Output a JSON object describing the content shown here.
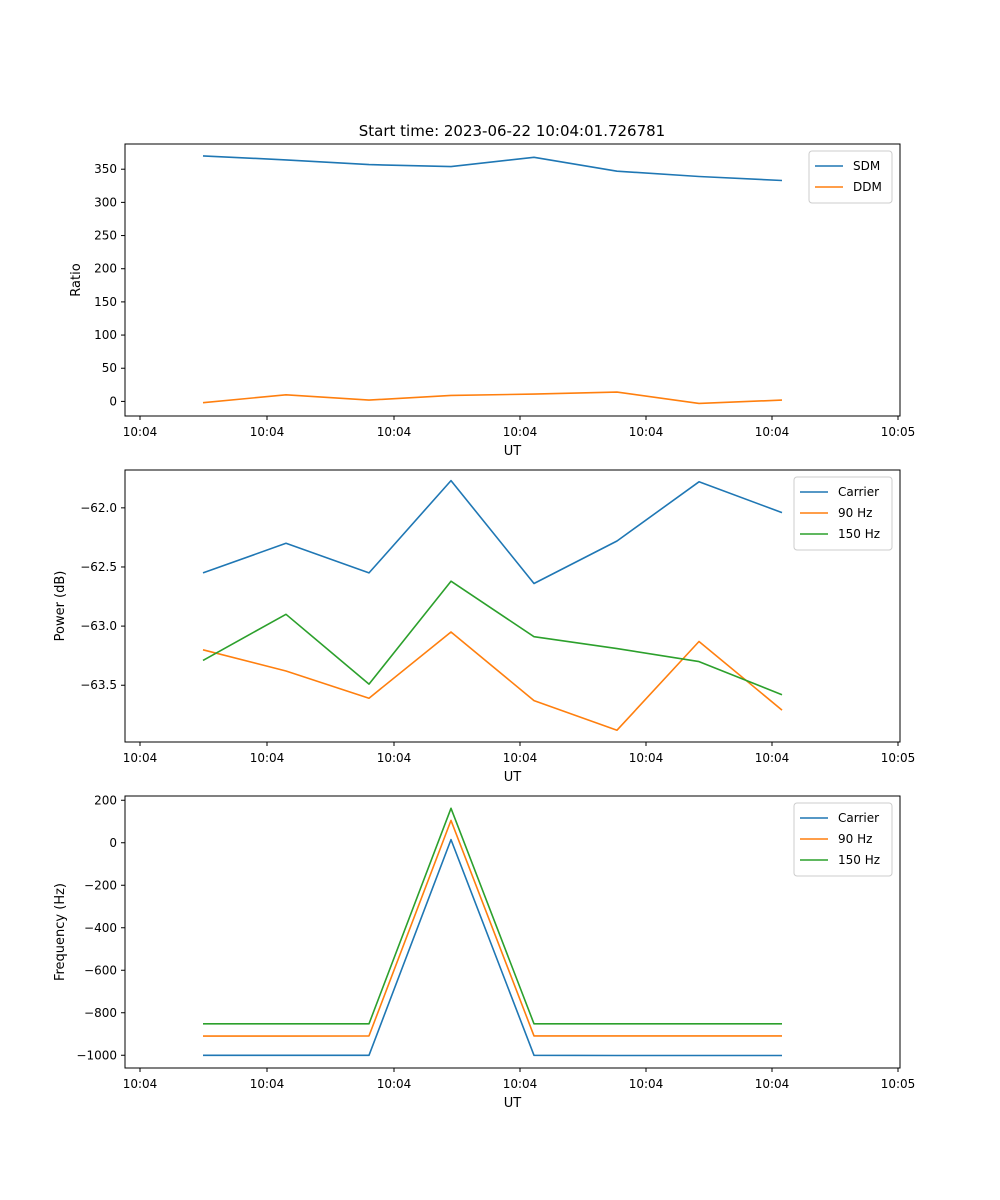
{
  "figure": {
    "title": "Start time: 2023-06-22 10:04:01.726781"
  },
  "chart_data": [
    {
      "type": "line",
      "title": "Start time: 2023-06-22 10:04:01.726781",
      "xlabel": "UT",
      "ylabel": "Ratio",
      "x_tick_labels": [
        "10:04",
        "10:04",
        "10:04",
        "10:04",
        "10:04",
        "10:04",
        "10:04"
      ],
      "x_tick_labels_end": "10:05",
      "ylim": [
        -22,
        388
      ],
      "y_ticks": [
        0,
        50,
        100,
        150,
        200,
        250,
        300,
        350
      ],
      "legend": "top-right",
      "series": [
        {
          "name": "SDM",
          "color": "#1f77b4",
          "values": [
            370,
            364,
            357,
            354,
            368,
            347,
            339,
            333
          ]
        },
        {
          "name": "DDM",
          "color": "#ff7f0e",
          "values": [
            -2,
            10,
            2,
            9,
            11,
            14,
            -3,
            2
          ]
        }
      ]
    },
    {
      "type": "line",
      "xlabel": "UT",
      "ylabel": "Power (dB)",
      "x_tick_labels": [
        "10:04",
        "10:04",
        "10:04",
        "10:04",
        "10:04",
        "10:04",
        "10:04"
      ],
      "x_tick_labels_end": "10:05",
      "ylim": [
        -63.98,
        -61.68
      ],
      "y_ticks": [
        -63.5,
        -63.0,
        -62.5,
        -62.0
      ],
      "y_tick_labels": [
        "−63.5",
        "−63.0",
        "−62.5",
        "−62.0"
      ],
      "legend": "top-right",
      "series": [
        {
          "name": "Carrier",
          "color": "#1f77b4",
          "values": [
            -62.55,
            -62.3,
            -62.55,
            -61.77,
            -62.64,
            -62.28,
            -61.78,
            -62.04
          ]
        },
        {
          "name": "90 Hz",
          "color": "#ff7f0e",
          "values": [
            -63.2,
            -63.38,
            -63.61,
            -63.05,
            -63.63,
            -63.88,
            -63.13,
            -63.71
          ]
        },
        {
          "name": "150 Hz",
          "color": "#2ca02c",
          "values": [
            -63.29,
            -62.9,
            -63.49,
            -62.62,
            -63.09,
            -63.19,
            -63.3,
            -63.58
          ]
        }
      ]
    },
    {
      "type": "line",
      "xlabel": "UT",
      "ylabel": "Frequency (Hz)",
      "x_tick_labels": [
        "10:04",
        "10:04",
        "10:04",
        "10:04",
        "10:04",
        "10:04",
        "10:04"
      ],
      "x_tick_labels_end": "10:05",
      "ylim": [
        -1060,
        220
      ],
      "y_ticks": [
        -1000,
        -800,
        -600,
        -400,
        -200,
        0,
        200
      ],
      "y_tick_labels": [
        "−1000",
        "−800",
        "−600",
        "−400",
        "−200",
        "0",
        "200"
      ],
      "legend": "top-right",
      "series": [
        {
          "name": "Carrier",
          "color": "#1f77b4",
          "values": [
            -1000,
            -1000,
            -1000,
            15,
            -1000,
            -1001,
            -1001,
            -1001
          ]
        },
        {
          "name": "90 Hz",
          "color": "#ff7f0e",
          "values": [
            -910,
            -910,
            -909,
            105,
            -909,
            -909,
            -909,
            -909
          ]
        },
        {
          "name": "150 Hz",
          "color": "#2ca02c",
          "values": [
            -852,
            -852,
            -852,
            162,
            -852,
            -852,
            -852,
            -852
          ]
        }
      ]
    }
  ]
}
